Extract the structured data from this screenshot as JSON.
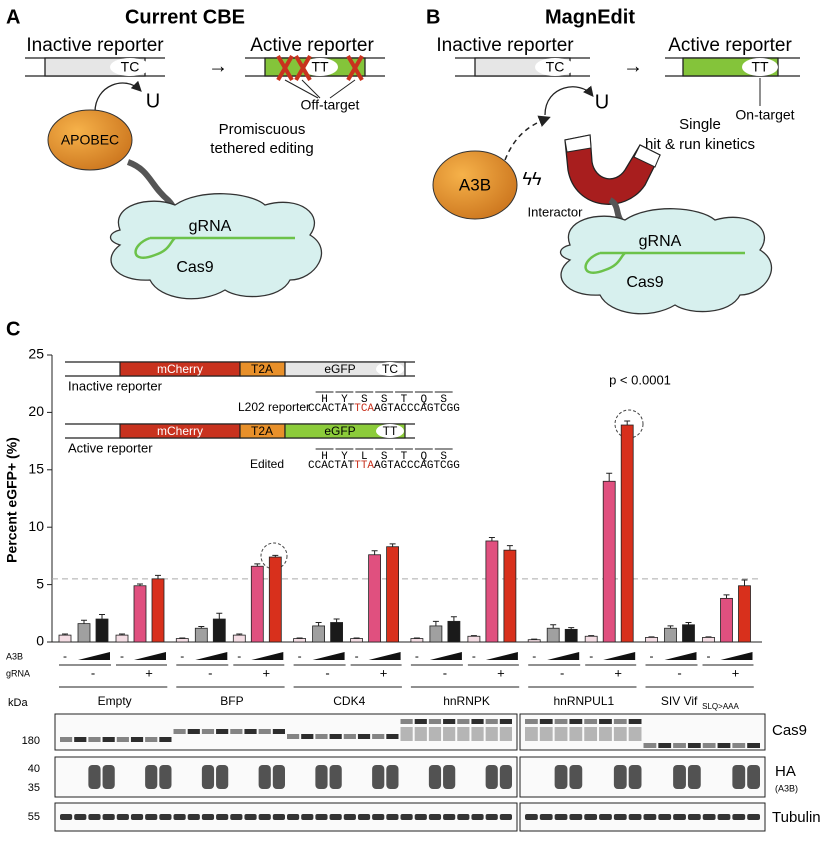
{
  "panel_a": {
    "letter": "A",
    "title": "Current CBE",
    "inactive": "Inactive reporter",
    "active": "Active reporter",
    "tc": "TC",
    "tt": "TT",
    "u": "U",
    "enzyme": "APOBEC",
    "off_target": "Off-target",
    "note": [
      "Promiscuous",
      "tethered editing"
    ],
    "grna": "gRNA",
    "cas9": "Cas9"
  },
  "panel_b": {
    "letter": "B",
    "title": "MagnEdit",
    "inactive": "Inactive reporter",
    "active": "Active reporter",
    "tc": "TC",
    "tt": "TT",
    "u": "U",
    "enzyme": "A3B",
    "interactor": "Interactor",
    "on_target": "On-target",
    "note": [
      "Single",
      "hit & run kinetics"
    ],
    "grna": "gRNA",
    "cas9": "Cas9"
  },
  "panel_c": {
    "letter": "C",
    "inset": {
      "mcherry": "mCherry",
      "t2a": "T2A",
      "egfp": "eGFP",
      "tc": "TC",
      "tt": "TT",
      "inactive": "Inactive reporter",
      "active": "Active reporter",
      "l202": {
        "label": "L202 reporter",
        "aa": [
          "H",
          "Y",
          "S",
          "S",
          "T",
          "Q",
          "S"
        ],
        "seq": [
          "CCACTAT",
          "TCA",
          "AGTACCCAGTCGG"
        ]
      },
      "edited": {
        "label": "Edited",
        "aa": [
          "H",
          "Y",
          "L",
          "S",
          "T",
          "Q",
          "S"
        ],
        "seq": [
          "CCACTAT",
          "TTA",
          "AGTACCCAGTCGG"
        ]
      }
    },
    "annotation": "p < 0.0001",
    "a3b_label": "A3B",
    "grna_label": "gRNA",
    "minus": "-",
    "plus": "+",
    "vif_subscript": "SLQ>AAA",
    "blot": {
      "kda": "kDa",
      "markers": [
        "180",
        "40",
        "35",
        "55"
      ],
      "rows": [
        "Cas9",
        "HA",
        "Tubulin"
      ],
      "ha_sub": "(A3B)"
    }
  },
  "chart_data": {
    "type": "bar",
    "y_label": "Percent eGFP+ (%)",
    "categories": [
      "Empty",
      "BFP",
      "CDK4",
      "hnRNPK",
      "hnRNPUL1",
      "SIV Vif"
    ],
    "series": [
      {
        "color": "#f4dde4",
        "values": [
          0.6,
          0.3,
          0.3,
          0.3,
          0.2,
          0.4
        ],
        "errors": [
          0.1,
          0.05,
          0.05,
          0.05,
          0.05,
          0.05
        ]
      },
      {
        "color": "#a0a0a0",
        "values": [
          1.6,
          1.2,
          1.4,
          1.4,
          1.2,
          1.2
        ],
        "errors": [
          0.3,
          0.15,
          0.3,
          0.4,
          0.3,
          0.2
        ]
      },
      {
        "color": "#1a1a1a",
        "values": [
          2.0,
          2.0,
          1.7,
          1.8,
          1.1,
          1.5
        ],
        "errors": [
          0.4,
          0.5,
          0.3,
          0.4,
          0.15,
          0.2
        ]
      },
      {
        "color": "#f4dde4",
        "values": [
          0.6,
          0.6,
          0.3,
          0.5,
          0.5,
          0.4
        ],
        "errors": [
          0.1,
          0.1,
          0.05,
          0.05,
          0.05,
          0.05
        ]
      },
      {
        "color": "#e0507f",
        "values": [
          4.9,
          6.6,
          7.6,
          8.8,
          14.0,
          3.8
        ],
        "errors": [
          0.15,
          0.2,
          0.35,
          0.3,
          0.7,
          0.3
        ]
      },
      {
        "color": "#d8301c",
        "values": [
          5.5,
          7.4,
          8.3,
          8.0,
          18.9,
          4.9
        ],
        "errors": [
          0.3,
          0.15,
          0.25,
          0.4,
          0.35,
          0.5
        ]
      }
    ],
    "ylim": [
      0,
      25
    ],
    "yticks": [
      0,
      5,
      10,
      15,
      20,
      25
    ],
    "reference_line": 5.5
  }
}
